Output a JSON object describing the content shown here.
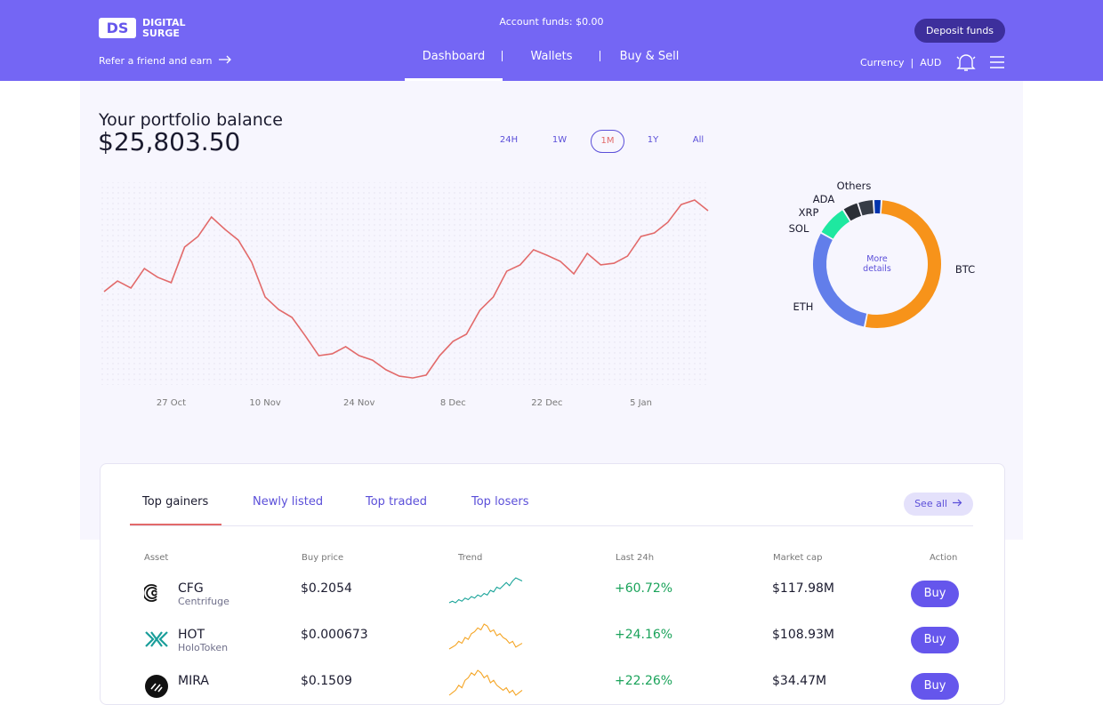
{
  "header": {
    "logo_mark": "DS",
    "logo_line1": "DIGITAL",
    "logo_line2": "SURGE",
    "account_funds": "Account funds: $0.00",
    "deposit": "Deposit funds",
    "refer": "Refer a friend and earn",
    "nav": [
      "Dashboard",
      "Wallets",
      "Buy & Sell"
    ],
    "nav_selected": 0,
    "currency_label": "Currency",
    "currency": "AUD"
  },
  "portfolio": {
    "title": "Your portfolio balance",
    "balance": "$25,803.50",
    "ranges": [
      "24H",
      "1W",
      "1M",
      "1Y",
      "All"
    ],
    "selected": 2
  },
  "chart_data": [
    {
      "type": "line",
      "color": "#e26a6a",
      "x": [
        0,
        2,
        4,
        6,
        8,
        10,
        12,
        14,
        16,
        18,
        20,
        22,
        24,
        26,
        28,
        30,
        32,
        34,
        36,
        38,
        40,
        42,
        44,
        46,
        48,
        50,
        52,
        54,
        56,
        58,
        60,
        62,
        64,
        66,
        68,
        70,
        72,
        74,
        76,
        78,
        80,
        82,
        84,
        86,
        88,
        90
      ],
      "values": [
        46.5,
        51.7,
        48.3,
        57.8,
        53.5,
        50.9,
        68.3,
        73.5,
        83.0,
        77.0,
        71.7,
        60.9,
        43.9,
        37.8,
        33.9,
        24.8,
        15.2,
        16.1,
        19.6,
        15.2,
        13.0,
        8.3,
        5.2,
        4.3,
        5.7,
        15.2,
        22.2,
        25.7,
        37.4,
        43.9,
        56.5,
        59.6,
        67.0,
        64.3,
        61.3,
        55.2,
        65.2,
        59.6,
        60.4,
        63.9,
        73.5,
        75.2,
        80.4,
        89.1,
        91.3,
        86.1
      ],
      "xlim": [
        0,
        90
      ],
      "ylim": [
        0,
        100
      ],
      "xticks": [
        {
          "value": 10,
          "label": "27 Oct"
        },
        {
          "value": 24,
          "label": "10 Nov"
        },
        {
          "value": 38,
          "label": "24 Nov"
        },
        {
          "value": 52,
          "label": "8 Dec"
        },
        {
          "value": 66,
          "label": "22 Dec"
        },
        {
          "value": 80,
          "label": "5 Jan"
        }
      ]
    },
    {
      "type": "pie",
      "center_label": "More details",
      "categories": [
        "BTC",
        "ETH",
        "SOL",
        "XRP",
        "ADA",
        "Others"
      ],
      "values": [
        52,
        30,
        8,
        4,
        4,
        2
      ],
      "colors": [
        "#f7931a",
        "#627eea",
        "#1ee8a0",
        "#2b2f36",
        "#363c46",
        "#0033ad"
      ]
    }
  ],
  "table": {
    "tabs": [
      "Top gainers",
      "Newly listed",
      "Top traded",
      "Top losers"
    ],
    "tab_selected": 0,
    "see_all": "See all",
    "columns": [
      "Asset",
      "Buy price",
      "Trend",
      "Last 24h",
      "Market cap",
      "Action"
    ],
    "rows": [
      {
        "symbol": "CFG",
        "name": "Centrifuge",
        "price": "$0.2054",
        "change": "+60.72%",
        "cap": "$117.98M",
        "action": "Buy",
        "trend_color": "#17a398",
        "trend": [
          2,
          3,
          2,
          4,
          3,
          5,
          4,
          6,
          5,
          7,
          6,
          8,
          7,
          10,
          9,
          12,
          11,
          13,
          15,
          13,
          16,
          18,
          17,
          16
        ]
      },
      {
        "symbol": "HOT",
        "name": "HoloToken",
        "price": "$0.000673",
        "change": "+24.16%",
        "cap": "$108.93M",
        "action": "Buy",
        "trend_color": "#f5a524",
        "trend": [
          5,
          6,
          7,
          9,
          8,
          11,
          10,
          13,
          14,
          16,
          15,
          18,
          17,
          14,
          15,
          12,
          13,
          11,
          10,
          8,
          9,
          6,
          7,
          8
        ]
      },
      {
        "symbol": "MIRA",
        "price": "$0.1509",
        "change": "+22.26%",
        "cap": "$34.47M",
        "action": "Buy",
        "trend_color": "#f5a524",
        "trend": [
          6,
          7,
          8,
          10,
          9,
          12,
          13,
          15,
          14,
          16,
          15,
          13,
          14,
          11,
          12,
          10,
          9,
          8,
          9,
          7,
          8,
          6,
          7,
          8
        ]
      }
    ]
  }
}
